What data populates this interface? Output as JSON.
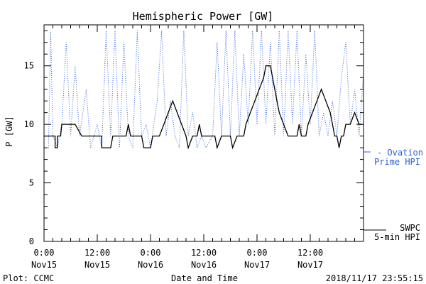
{
  "chart_data": {
    "type": "line",
    "title": "Hemispheric Power [GW]",
    "xlabel": "Date and Time",
    "ylabel": "P [GW]",
    "xlim": [
      "2018-11-15T00:00",
      "2018-11-18T00:00"
    ],
    "ylim": [
      0,
      18.5
    ],
    "y_major_ticks": [
      0,
      5,
      10,
      15
    ],
    "y_minor_step": 1,
    "x_tick_labels": [
      [
        "0:00",
        "Nov15"
      ],
      [
        "12:00",
        "Nov15"
      ],
      [
        "0:00",
        "Nov16"
      ],
      [
        "12:00",
        "Nov16"
      ],
      [
        "0:00",
        "Nov17"
      ],
      [
        "12:00",
        "Nov17"
      ]
    ],
    "x_tick_times": [
      "2018-11-15T00:00",
      "2018-11-15T12:00",
      "2018-11-16T00:00",
      "2018-11-16T12:00",
      "2018-11-17T00:00",
      "2018-11-17T12:00"
    ],
    "grid": false,
    "legend_position": "right",
    "colors": {
      "swpc": "#000000",
      "ovation": "#3060d0"
    },
    "series": [
      {
        "name": "SWPC 5-min HPI",
        "legend_lines": [
          "SWPC",
          "5-min HPI"
        ],
        "style": "solid",
        "points": [
          [
            "2018-11-15T00:00",
            9
          ],
          [
            "2018-11-15T02:30",
            9
          ],
          [
            "2018-11-15T02:30",
            8
          ],
          [
            "2018-11-15T03:00",
            8
          ],
          [
            "2018-11-15T03:00",
            9
          ],
          [
            "2018-11-15T03:45",
            9
          ],
          [
            "2018-11-15T04:00",
            10
          ],
          [
            "2018-11-15T07:00",
            10
          ],
          [
            "2018-11-15T08:30",
            9
          ],
          [
            "2018-11-15T13:00",
            9
          ],
          [
            "2018-11-15T13:00",
            8
          ],
          [
            "2018-11-15T15:00",
            8
          ],
          [
            "2018-11-15T15:30",
            9
          ],
          [
            "2018-11-15T18:30",
            9
          ],
          [
            "2018-11-15T19:00",
            10
          ],
          [
            "2018-11-15T19:30",
            9
          ],
          [
            "2018-11-15T22:00",
            9
          ],
          [
            "2018-11-15T22:30",
            8
          ],
          [
            "2018-11-16T00:00",
            8
          ],
          [
            "2018-11-16T00:30",
            9
          ],
          [
            "2018-11-16T02:00",
            9
          ],
          [
            "2018-11-16T03:00",
            10
          ],
          [
            "2018-11-16T04:00",
            11
          ],
          [
            "2018-11-16T05:00",
            12
          ],
          [
            "2018-11-16T06:00",
            11
          ],
          [
            "2018-11-16T07:00",
            10
          ],
          [
            "2018-11-16T08:00",
            9
          ],
          [
            "2018-11-16T08:30",
            8
          ],
          [
            "2018-11-16T09:30",
            9
          ],
          [
            "2018-11-16T10:30",
            9
          ],
          [
            "2018-11-16T11:00",
            10
          ],
          [
            "2018-11-16T11:30",
            9
          ],
          [
            "2018-11-16T14:30",
            9
          ],
          [
            "2018-11-16T15:00",
            8
          ],
          [
            "2018-11-16T16:00",
            9
          ],
          [
            "2018-11-16T18:00",
            9
          ],
          [
            "2018-11-16T18:30",
            8
          ],
          [
            "2018-11-16T19:30",
            9
          ],
          [
            "2018-11-16T21:00",
            9
          ],
          [
            "2018-11-16T21:30",
            10
          ],
          [
            "2018-11-16T22:30",
            11
          ],
          [
            "2018-11-16T23:30",
            12
          ],
          [
            "2018-11-17T00:30",
            13
          ],
          [
            "2018-11-17T01:30",
            14
          ],
          [
            "2018-11-17T02:00",
            15
          ],
          [
            "2018-11-17T03:00",
            15
          ],
          [
            "2018-11-17T03:30",
            14
          ],
          [
            "2018-11-17T04:00",
            13
          ],
          [
            "2018-11-17T04:30",
            12
          ],
          [
            "2018-11-17T05:00",
            11
          ],
          [
            "2018-11-17T06:00",
            10
          ],
          [
            "2018-11-17T07:00",
            9
          ],
          [
            "2018-11-17T09:00",
            9
          ],
          [
            "2018-11-17T09:30",
            10
          ],
          [
            "2018-11-17T10:00",
            9
          ],
          [
            "2018-11-17T11:00",
            9
          ],
          [
            "2018-11-17T11:30",
            10
          ],
          [
            "2018-11-17T12:30",
            11
          ],
          [
            "2018-11-17T13:30",
            12
          ],
          [
            "2018-11-17T14:30",
            13
          ],
          [
            "2018-11-17T15:30",
            12
          ],
          [
            "2018-11-17T16:30",
            11
          ],
          [
            "2018-11-17T17:00",
            10
          ],
          [
            "2018-11-17T17:30",
            9
          ],
          [
            "2018-11-17T18:00",
            9
          ],
          [
            "2018-11-17T18:30",
            8
          ],
          [
            "2018-11-17T19:00",
            9
          ],
          [
            "2018-11-17T19:30",
            9
          ],
          [
            "2018-11-17T20:00",
            10
          ],
          [
            "2018-11-17T21:00",
            10
          ],
          [
            "2018-11-17T22:00",
            11
          ],
          [
            "2018-11-17T23:00",
            10
          ],
          [
            "2018-11-17T23:55",
            10
          ]
        ]
      },
      {
        "name": "Ovation Prime HPI",
        "legend_lines": [
          "- Ovation",
          "Prime HPI"
        ],
        "style": "dotted",
        "points": [
          [
            "2018-11-15T00:00",
            8
          ],
          [
            "2018-11-15T01:00",
            8
          ],
          [
            "2018-11-15T01:30",
            18
          ],
          [
            "2018-11-15T02:00",
            9
          ],
          [
            "2018-11-15T03:00",
            8
          ],
          [
            "2018-11-15T04:00",
            10
          ],
          [
            "2018-11-15T05:00",
            17
          ],
          [
            "2018-11-15T06:00",
            9
          ],
          [
            "2018-11-15T07:00",
            15
          ],
          [
            "2018-11-15T08:00",
            9
          ],
          [
            "2018-11-15T09:30",
            13
          ],
          [
            "2018-11-15T10:30",
            8
          ],
          [
            "2018-11-15T12:00",
            10
          ],
          [
            "2018-11-15T13:00",
            8
          ],
          [
            "2018-11-15T14:00",
            18
          ],
          [
            "2018-11-15T15:00",
            9
          ],
          [
            "2018-11-15T16:00",
            18
          ],
          [
            "2018-11-15T17:00",
            8
          ],
          [
            "2018-11-15T18:00",
            17
          ],
          [
            "2018-11-15T19:00",
            9
          ],
          [
            "2018-11-15T20:00",
            8
          ],
          [
            "2018-11-15T21:00",
            18
          ],
          [
            "2018-11-15T22:00",
            9
          ],
          [
            "2018-11-15T23:00",
            10
          ],
          [
            "2018-11-16T00:00",
            8
          ],
          [
            "2018-11-16T01:30",
            12
          ],
          [
            "2018-11-16T02:30",
            18
          ],
          [
            "2018-11-16T03:30",
            9
          ],
          [
            "2018-11-16T04:30",
            12
          ],
          [
            "2018-11-16T05:30",
            9
          ],
          [
            "2018-11-16T06:30",
            8
          ],
          [
            "2018-11-16T07:30",
            18
          ],
          [
            "2018-11-16T08:30",
            9
          ],
          [
            "2018-11-16T09:30",
            11
          ],
          [
            "2018-11-16T10:30",
            8
          ],
          [
            "2018-11-16T11:30",
            9
          ],
          [
            "2018-11-16T12:30",
            8
          ],
          [
            "2018-11-16T14:00",
            9
          ],
          [
            "2018-11-16T15:00",
            17
          ],
          [
            "2018-11-16T16:00",
            9
          ],
          [
            "2018-11-16T17:00",
            18
          ],
          [
            "2018-11-16T18:00",
            9
          ],
          [
            "2018-11-16T19:00",
            18
          ],
          [
            "2018-11-16T20:00",
            9
          ],
          [
            "2018-11-16T21:00",
            16
          ],
          [
            "2018-11-16T22:00",
            10
          ],
          [
            "2018-11-16T23:00",
            18
          ],
          [
            "2018-11-17T00:00",
            10
          ],
          [
            "2018-11-17T01:00",
            18
          ],
          [
            "2018-11-17T02:00",
            10
          ],
          [
            "2018-11-17T03:00",
            17
          ],
          [
            "2018-11-17T04:00",
            9
          ],
          [
            "2018-11-17T05:00",
            18
          ],
          [
            "2018-11-17T06:00",
            9
          ],
          [
            "2018-11-17T07:00",
            18
          ],
          [
            "2018-11-17T08:00",
            10
          ],
          [
            "2018-11-17T09:00",
            18
          ],
          [
            "2018-11-17T10:00",
            9
          ],
          [
            "2018-11-17T11:00",
            16
          ],
          [
            "2018-11-17T12:00",
            10
          ],
          [
            "2018-11-17T13:00",
            18
          ],
          [
            "2018-11-17T14:00",
            9
          ],
          [
            "2018-11-17T15:00",
            11
          ],
          [
            "2018-11-17T16:00",
            9
          ],
          [
            "2018-11-17T17:00",
            12
          ],
          [
            "2018-11-17T18:00",
            9
          ],
          [
            "2018-11-17T19:00",
            14
          ],
          [
            "2018-11-17T20:00",
            17
          ],
          [
            "2018-11-17T21:00",
            10
          ],
          [
            "2018-11-17T22:00",
            13
          ],
          [
            "2018-11-17T23:00",
            9
          ],
          [
            "2018-11-17T23:55",
            14
          ]
        ]
      }
    ]
  },
  "footer": {
    "left": "Plot: CCMC",
    "right": "2018/11/17 23:55:15"
  }
}
